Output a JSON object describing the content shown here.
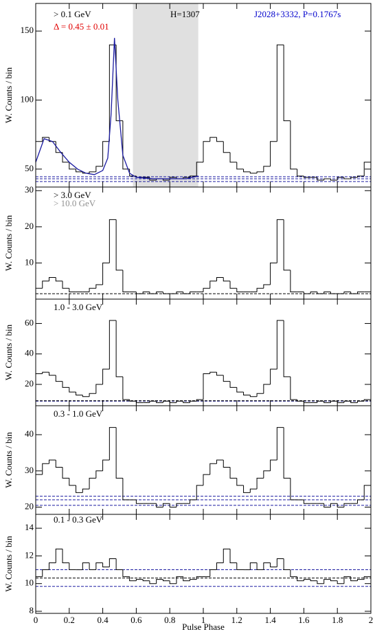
{
  "chart_data": [
    {
      "type": "histogram",
      "ylabel": "W. Counts / bin",
      "bins": [
        0,
        0.04,
        0.08,
        0.12,
        0.16,
        0.2,
        0.24,
        0.28,
        0.32,
        0.36,
        0.4,
        0.44,
        0.48,
        0.52,
        0.56,
        0.6,
        0.64,
        0.68,
        0.72,
        0.76,
        0.8,
        0.84,
        0.88,
        0.92,
        0.96,
        1,
        1.04,
        1.08,
        1.12,
        1.16,
        1.2,
        1.24,
        1.28,
        1.32,
        1.36,
        1.4,
        1.44,
        1.48,
        1.52,
        1.56,
        1.6,
        1.64,
        1.68,
        1.72,
        1.76,
        1.8,
        1.84,
        1.88,
        1.92,
        1.96,
        2
      ],
      "values": [
        70,
        73,
        70,
        62,
        55,
        50,
        48,
        47,
        48,
        52,
        70,
        140,
        85,
        50,
        45,
        44,
        44,
        42,
        43,
        42,
        44,
        43,
        44,
        45,
        55,
        70,
        73,
        70,
        62,
        55,
        50,
        48,
        47,
        48,
        52,
        70,
        140,
        85,
        50,
        45,
        44,
        44,
        42,
        43,
        42,
        44,
        43,
        44,
        45,
        55
      ],
      "color": "#000000",
      "xlim": [
        0,
        2
      ],
      "xticks": [
        0,
        0.2,
        0.4,
        0.6,
        0.8,
        1,
        1.2,
        1.4,
        1.6,
        1.8,
        2
      ],
      "ylim": [
        37,
        170
      ],
      "yticks": [
        50,
        100,
        150
      ],
      "span": {
        "x": [
          0.58,
          0.97
        ],
        "color": "#e0e0e0"
      },
      "fit": {
        "color": "#1a1aa0",
        "x": [
          0,
          0.05,
          0.1,
          0.15,
          0.2,
          0.25,
          0.3,
          0.35,
          0.4,
          0.43,
          0.45,
          0.47,
          0.49,
          0.52,
          0.56,
          0.6,
          0.7,
          0.8,
          0.9,
          0.97
        ],
        "y": [
          55,
          72,
          70,
          62,
          55,
          50,
          47,
          46,
          49,
          58,
          90,
          145,
          100,
          60,
          47,
          44,
          43,
          43,
          43,
          45
        ]
      },
      "hlines": [
        {
          "value": 41,
          "color": "#1a1aa0"
        },
        {
          "value": 43,
          "color": "#1a1aa0"
        },
        {
          "value": 44.5,
          "color": "#1a1aa0"
        }
      ],
      "annotations": [
        {
          "text": "> 0.1 GeV",
          "color": "#000000"
        },
        {
          "text": "Δ = 0.45 ± 0.01",
          "color": "#e00000"
        },
        {
          "text": "H=1307",
          "color": "#000000"
        },
        {
          "text": "J2028+3332, P=0.1767s",
          "color": "#0000cc"
        }
      ]
    },
    {
      "type": "histogram",
      "ylabel": "W. Counts / bin",
      "bins": [
        0,
        0.04,
        0.08,
        0.12,
        0.16,
        0.2,
        0.24,
        0.28,
        0.32,
        0.36,
        0.4,
        0.44,
        0.48,
        0.52,
        0.56,
        0.6,
        0.64,
        0.68,
        0.72,
        0.76,
        0.8,
        0.84,
        0.88,
        0.92,
        0.96,
        1,
        1.04,
        1.08,
        1.12,
        1.16,
        1.2,
        1.24,
        1.28,
        1.32,
        1.36,
        1.4,
        1.44,
        1.48,
        1.52,
        1.56,
        1.6,
        1.64,
        1.68,
        1.72,
        1.76,
        1.8,
        1.84,
        1.88,
        1.92,
        1.96,
        2
      ],
      "values": [
        3,
        5,
        6,
        5,
        3,
        2,
        2,
        2,
        3,
        4,
        10,
        22,
        8,
        2,
        2,
        1.5,
        2,
        1.5,
        2,
        1.5,
        1.5,
        2,
        1.5,
        2,
        2,
        3,
        5,
        6,
        5,
        3,
        2,
        2,
        2,
        3,
        4,
        10,
        22,
        8,
        2,
        2,
        1.5,
        2,
        1.5,
        2,
        1.5,
        1.5,
        2,
        1.5,
        2,
        2
      ],
      "color": "#000000",
      "xlim": [
        0,
        2
      ],
      "xticks": [
        0,
        0.2,
        0.4,
        0.6,
        0.8,
        1,
        1.2,
        1.4,
        1.6,
        1.8,
        2
      ],
      "ylim": [
        0,
        31
      ],
      "yticks": [
        10,
        20,
        30
      ],
      "hlines": [
        {
          "value": 1.5,
          "color": "#000000"
        }
      ],
      "annotations": [
        {
          "text": "> 3.0 GeV",
          "color": "#000000"
        },
        {
          "text": "> 10.0 GeV",
          "color": "#909090"
        }
      ]
    },
    {
      "type": "histogram",
      "ylabel": "W. Counts / bin",
      "bins": [
        0,
        0.04,
        0.08,
        0.12,
        0.16,
        0.2,
        0.24,
        0.28,
        0.32,
        0.36,
        0.4,
        0.44,
        0.48,
        0.52,
        0.56,
        0.6,
        0.64,
        0.68,
        0.72,
        0.76,
        0.8,
        0.84,
        0.88,
        0.92,
        0.96,
        1,
        1.04,
        1.08,
        1.12,
        1.16,
        1.2,
        1.24,
        1.28,
        1.32,
        1.36,
        1.4,
        1.44,
        1.48,
        1.52,
        1.56,
        1.6,
        1.64,
        1.68,
        1.72,
        1.76,
        1.8,
        1.84,
        1.88,
        1.92,
        1.96,
        2
      ],
      "values": [
        27,
        28,
        26,
        22,
        18,
        15,
        13,
        12,
        14,
        20,
        30,
        62,
        25,
        10,
        9,
        8,
        8,
        9,
        8,
        9,
        8,
        9,
        8,
        9,
        10,
        27,
        28,
        26,
        22,
        18,
        15,
        13,
        12,
        14,
        20,
        30,
        62,
        25,
        10,
        9,
        8,
        8,
        9,
        8,
        9,
        8,
        9,
        8,
        9,
        10
      ],
      "color": "#000000",
      "xlim": [
        0,
        2
      ],
      "xticks": [
        0,
        0.2,
        0.4,
        0.6,
        0.8,
        1,
        1.2,
        1.4,
        1.6,
        1.8,
        2
      ],
      "ylim": [
        6,
        76
      ],
      "yticks": [
        20,
        40,
        60
      ],
      "hlines": [
        {
          "value": 9,
          "color": "#1a1aa0"
        },
        {
          "value": 9.3,
          "color": "#000000"
        }
      ],
      "annotations": [
        {
          "text": "1.0 - 3.0 GeV",
          "color": "#000000"
        }
      ]
    },
    {
      "type": "histogram",
      "ylabel": "W. Counts / bin",
      "bins": [
        0,
        0.04,
        0.08,
        0.12,
        0.16,
        0.2,
        0.24,
        0.28,
        0.32,
        0.36,
        0.4,
        0.44,
        0.48,
        0.52,
        0.56,
        0.6,
        0.64,
        0.68,
        0.72,
        0.76,
        0.8,
        0.84,
        0.88,
        0.92,
        0.96,
        1,
        1.04,
        1.08,
        1.12,
        1.16,
        1.2,
        1.24,
        1.28,
        1.32,
        1.36,
        1.4,
        1.44,
        1.48,
        1.52,
        1.56,
        1.6,
        1.64,
        1.68,
        1.72,
        1.76,
        1.8,
        1.84,
        1.88,
        1.92,
        1.96,
        2
      ],
      "values": [
        29,
        32,
        33,
        31,
        28,
        26,
        24,
        25,
        28,
        30,
        33,
        42,
        28,
        22,
        22,
        21,
        21,
        21,
        20,
        21,
        20,
        21,
        21,
        22,
        26,
        29,
        32,
        33,
        31,
        28,
        26,
        24,
        25,
        28,
        30,
        33,
        42,
        28,
        22,
        22,
        21,
        21,
        21,
        20,
        21,
        20,
        21,
        21,
        22,
        26
      ],
      "color": "#000000",
      "xlim": [
        0,
        2
      ],
      "xticks": [
        0,
        0.2,
        0.4,
        0.6,
        0.8,
        1,
        1.2,
        1.4,
        1.6,
        1.8,
        2
      ],
      "ylim": [
        18,
        48
      ],
      "yticks": [
        20,
        30,
        40
      ],
      "hlines": [
        {
          "value": 20.5,
          "color": "#1a1aa0"
        },
        {
          "value": 22,
          "color": "#1a1aa0"
        },
        {
          "value": 23,
          "color": "#1a1aa0"
        }
      ],
      "annotations": [
        {
          "text": "0.3 - 1.0 GeV",
          "color": "#000000"
        }
      ]
    },
    {
      "type": "histogram",
      "ylabel": "W. Counts / bin",
      "xlabel": "Pulse Phase",
      "bins": [
        0,
        0.04,
        0.08,
        0.12,
        0.16,
        0.2,
        0.24,
        0.28,
        0.32,
        0.36,
        0.4,
        0.44,
        0.48,
        0.52,
        0.56,
        0.6,
        0.64,
        0.68,
        0.72,
        0.76,
        0.8,
        0.84,
        0.88,
        0.92,
        0.96,
        1,
        1.04,
        1.08,
        1.12,
        1.16,
        1.2,
        1.24,
        1.28,
        1.32,
        1.36,
        1.4,
        1.44,
        1.48,
        1.52,
        1.56,
        1.6,
        1.64,
        1.68,
        1.72,
        1.76,
        1.8,
        1.84,
        1.88,
        1.92,
        1.96,
        2
      ],
      "values": [
        10.5,
        11,
        11.5,
        12.5,
        11.5,
        11,
        11,
        11.5,
        11,
        11.5,
        11.2,
        11.8,
        11,
        10.5,
        10.2,
        10.3,
        10.2,
        10,
        10.3,
        10.2,
        10,
        10.5,
        10.2,
        10.3,
        10.5,
        10.5,
        11,
        11.5,
        12.5,
        11.5,
        11,
        11,
        11.5,
        11,
        11.5,
        11.2,
        11.8,
        11,
        10.5,
        10.2,
        10.3,
        10.2,
        10,
        10.3,
        10.2,
        10,
        10.5,
        10.2,
        10.3,
        10.5
      ],
      "color": "#000000",
      "xlim": [
        0,
        2
      ],
      "xticks": [
        0,
        0.2,
        0.4,
        0.6,
        0.8,
        1,
        1.2,
        1.4,
        1.6,
        1.8,
        2
      ],
      "ylim": [
        7.85,
        15
      ],
      "yticks": [
        8,
        10,
        12,
        14
      ],
      "hlines": [
        {
          "value": 9.8,
          "color": "#1a1aa0"
        },
        {
          "value": 10.4,
          "color": "#000000"
        },
        {
          "value": 11,
          "color": "#1a1aa0"
        }
      ],
      "annotations": [
        {
          "text": "0.1 - 0.3 GeV",
          "color": "#000000"
        }
      ]
    }
  ]
}
